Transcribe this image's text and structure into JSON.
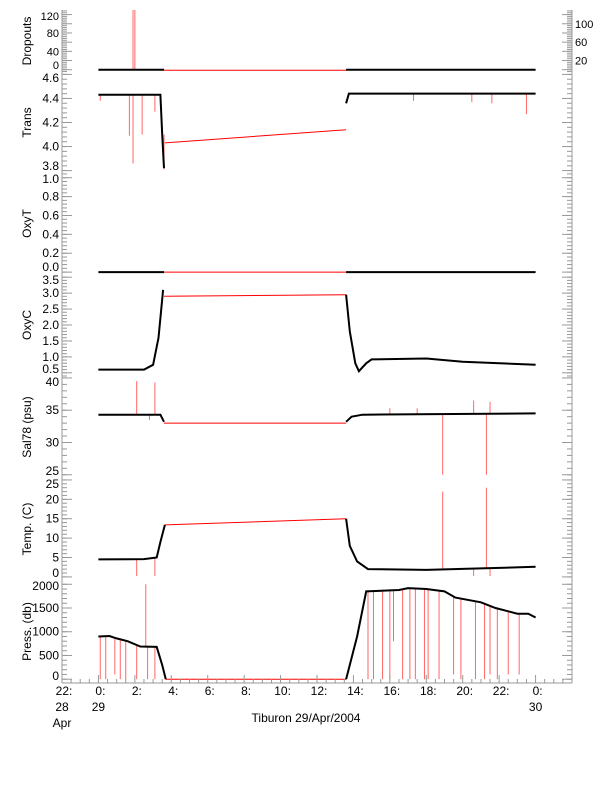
{
  "chart_data": {
    "type": "line",
    "title": "Tiburon 29/Apr/2004",
    "xlabel": "Tiburon 29/Apr/2004",
    "xlim": [
      -2,
      26
    ],
    "x_ticks": [
      {
        "h": -2,
        "l1": "22:",
        "l2": "28",
        "l3": "Apr"
      },
      {
        "h": 0,
        "l1": "0:",
        "l2": "29"
      },
      {
        "h": 2,
        "l1": "2:"
      },
      {
        "h": 4,
        "l1": "4:"
      },
      {
        "h": 6,
        "l1": "6:"
      },
      {
        "h": 8,
        "l1": "8:"
      },
      {
        "h": 10,
        "l1": "10:"
      },
      {
        "h": 12,
        "l1": "12:"
      },
      {
        "h": 14,
        "l1": "14:"
      },
      {
        "h": 16,
        "l1": "16:"
      },
      {
        "h": 18,
        "l1": "18:"
      },
      {
        "h": 20,
        "l1": "20:"
      },
      {
        "h": 22,
        "l1": "22:"
      },
      {
        "h": 24,
        "l1": "0:",
        "l2": "30"
      }
    ],
    "colors": {
      "processed": "#000000",
      "raw": "#ff0000"
    },
    "panels": [
      {
        "ylabel": "Dropouts",
        "ylim": [
          -5,
          130
        ],
        "ticks": [
          "0",
          "20",
          "40",
          "60",
          "80",
          "100",
          "120"
        ],
        "tickvals": [
          0,
          20,
          40,
          60,
          80,
          100,
          120
        ],
        "black": [
          [
            0,
            0
          ],
          [
            3.6,
            0
          ],
          null,
          [
            13.6,
            0
          ],
          [
            24,
            0
          ]
        ],
        "red": [
          [
            3.6,
            -1
          ],
          [
            13.6,
            -1
          ]
        ],
        "spikes": [
          [
            1.9,
            0,
            135
          ],
          [
            2.0,
            0,
            135
          ]
        ]
      },
      {
        "ylabel": "Trans",
        "ylim": [
          3.78,
          4.62
        ],
        "ticks": [
          "3.8",
          "4.0",
          "4.2",
          "4.4",
          "4.6"
        ],
        "tickvals": [
          3.8,
          4.0,
          4.2,
          4.4,
          4.6
        ],
        "black": [
          [
            0,
            4.43
          ],
          [
            3.4,
            4.43
          ],
          [
            3.5,
            4.1
          ],
          [
            3.6,
            3.82
          ],
          null,
          [
            13.6,
            4.36
          ],
          [
            13.75,
            4.44
          ],
          [
            24,
            4.44
          ]
        ],
        "red": [
          [
            3.65,
            4.03
          ],
          [
            13.6,
            4.14
          ]
        ],
        "spikes": [
          [
            1.7,
            4.43,
            4.09
          ],
          [
            1.9,
            4.43,
            3.86
          ],
          [
            2.4,
            4.43,
            4.1
          ],
          [
            3.1,
            4.43,
            4.29
          ],
          [
            3.6,
            4.1,
            3.81
          ],
          [
            0.1,
            4.43,
            4.38
          ],
          [
            17.3,
            4.44,
            4.38
          ],
          [
            20.5,
            4.44,
            4.37
          ],
          [
            21.6,
            4.44,
            4.36
          ],
          [
            23.5,
            4.44,
            4.27
          ]
        ]
      },
      {
        "ylabel": "OxyT",
        "ylim": [
          -0.02,
          1.05
        ],
        "ticks": [
          "0.0",
          "0.2",
          "0.4",
          "0.6",
          "0.8",
          "1.0"
        ],
        "tickvals": [
          0,
          0.2,
          0.4,
          0.6,
          0.8,
          1.0
        ],
        "black": [
          [
            0,
            0
          ],
          [
            3.6,
            0
          ],
          null,
          [
            13.6,
            0
          ],
          [
            24,
            0
          ]
        ],
        "red": [
          [
            3.6,
            0
          ],
          [
            13.6,
            0
          ]
        ],
        "spikes": []
      },
      {
        "ylabel": "OxyC",
        "ylim": [
          0.4,
          3.6
        ],
        "ticks": [
          "0.5",
          "1.0",
          "1.5",
          "2.0",
          "2.5",
          "3.0",
          "3.5"
        ],
        "tickvals": [
          0.5,
          1,
          1.5,
          2,
          2.5,
          3,
          3.5
        ],
        "black": [
          [
            0,
            0.6
          ],
          [
            2.5,
            0.6
          ],
          [
            3.0,
            0.75
          ],
          [
            3.3,
            1.6
          ],
          [
            3.55,
            3.1
          ],
          null,
          [
            13.6,
            2.95
          ],
          [
            13.8,
            1.8
          ],
          [
            14.1,
            0.8
          ],
          [
            14.3,
            0.55
          ],
          [
            14.7,
            0.8
          ],
          [
            15,
            0.92
          ],
          [
            18,
            0.95
          ],
          [
            20,
            0.85
          ],
          [
            24,
            0.75
          ]
        ],
        "red": [
          [
            3.6,
            2.9
          ],
          [
            13.6,
            2.95
          ]
        ],
        "spikes": []
      },
      {
        "ylabel": "Sal78 (psu)",
        "ylim": [
          24.5,
          40.3
        ],
        "ticks": [
          "25",
          "30",
          "35",
          "40"
        ],
        "tickvals": [
          25,
          30,
          35,
          40
        ],
        "black": [
          [
            0,
            34.3
          ],
          [
            3.4,
            34.3
          ],
          [
            3.6,
            33.2
          ],
          null,
          [
            13.6,
            33.2
          ],
          [
            13.9,
            34
          ],
          [
            14.5,
            34.3
          ],
          [
            24,
            34.5
          ]
        ],
        "red": [
          [
            3.6,
            33
          ],
          [
            13.6,
            33
          ]
        ],
        "spikes": [
          [
            2.1,
            34.3,
            39.5
          ],
          [
            3.1,
            34.3,
            39.3
          ],
          [
            2.8,
            34.3,
            33.5
          ],
          [
            18.9,
            34.5,
            25
          ],
          [
            21.3,
            34.5,
            25
          ],
          [
            20.6,
            34.5,
            36.5
          ],
          [
            21.5,
            34.5,
            36.3
          ],
          [
            16,
            34.5,
            35.3
          ],
          [
            17.5,
            34.5,
            35.3
          ]
        ]
      },
      {
        "ylabel": "Temp. (C)",
        "ylim": [
          -0.8,
          25.5
        ],
        "ticks": [
          "0",
          "5",
          "10",
          "15",
          "20",
          "25"
        ],
        "tickvals": [
          0,
          5,
          10,
          15,
          20,
          25
        ],
        "black": [
          [
            0,
            4.5
          ],
          [
            2.5,
            4.6
          ],
          [
            3.2,
            5
          ],
          [
            3.4,
            9
          ],
          [
            3.65,
            13.4
          ],
          null,
          [
            13.6,
            15
          ],
          [
            13.8,
            8
          ],
          [
            14.2,
            4
          ],
          [
            14.8,
            2
          ],
          [
            18,
            1.8
          ],
          [
            21,
            2.2
          ],
          [
            24,
            2.6
          ]
        ],
        "red": [
          [
            3.65,
            13.4
          ],
          [
            13.6,
            15
          ]
        ],
        "spikes": [
          [
            2.1,
            4.6,
            0.2
          ],
          [
            3.1,
            5,
            0.2
          ],
          [
            18.9,
            1.8,
            22
          ],
          [
            21.3,
            2.2,
            23
          ],
          [
            20.6,
            2.2,
            0.2
          ],
          [
            21.5,
            2.2,
            0.2
          ]
        ]
      },
      {
        "ylabel": "Press. (db)",
        "ylim": [
          -80,
          2090
        ],
        "ticks": [
          "0",
          "500",
          "1000",
          "1500",
          "2000"
        ],
        "tickvals": [
          0,
          500,
          1000,
          1500,
          2000
        ],
        "black": [
          [
            0,
            900
          ],
          [
            0.6,
            910
          ],
          [
            1.0,
            860
          ],
          [
            1.6,
            800
          ],
          [
            2.3,
            690
          ],
          [
            3.2,
            680
          ],
          [
            3.5,
            300
          ],
          [
            3.7,
            0
          ],
          null,
          [
            13.6,
            0
          ],
          [
            14.2,
            900
          ],
          [
            14.7,
            1850
          ],
          [
            16.5,
            1880
          ],
          [
            17,
            1920
          ],
          [
            18,
            1900
          ],
          [
            19,
            1850
          ],
          [
            19.6,
            1720
          ],
          [
            21,
            1620
          ],
          [
            21.8,
            1500
          ],
          [
            23,
            1380
          ],
          [
            23.6,
            1380
          ],
          [
            24,
            1300
          ]
        ],
        "red": [
          [
            3.7,
            0
          ],
          [
            13.6,
            0
          ]
        ],
        "spikes": [
          [
            0.1,
            900,
            0
          ],
          [
            0.4,
            900,
            0
          ],
          [
            0.9,
            880,
            100
          ],
          [
            1.2,
            850,
            0
          ],
          [
            1.5,
            810,
            0
          ],
          [
            2.1,
            720,
            0
          ],
          [
            2.6,
            690,
            2000
          ],
          [
            2.7,
            690,
            0
          ],
          [
            3.1,
            680,
            0
          ],
          [
            14.8,
            1850,
            0
          ],
          [
            15.1,
            1850,
            0
          ],
          [
            15.6,
            1860,
            0
          ],
          [
            16.0,
            1870,
            0
          ],
          [
            16.2,
            1870,
            800
          ],
          [
            16.7,
            1890,
            0
          ],
          [
            17.1,
            1910,
            0
          ],
          [
            17.4,
            1900,
            0
          ],
          [
            17.9,
            1900,
            0
          ],
          [
            18.1,
            1900,
            0
          ],
          [
            18.7,
            1880,
            0
          ],
          [
            19.5,
            1740,
            100
          ],
          [
            19.9,
            1700,
            0
          ],
          [
            20.7,
            1640,
            0
          ],
          [
            21.2,
            1580,
            0
          ],
          [
            21.5,
            1550,
            100
          ],
          [
            21.9,
            1500,
            0
          ],
          [
            22.5,
            1430,
            100
          ],
          [
            23.1,
            1380,
            100
          ]
        ]
      }
    ]
  }
}
